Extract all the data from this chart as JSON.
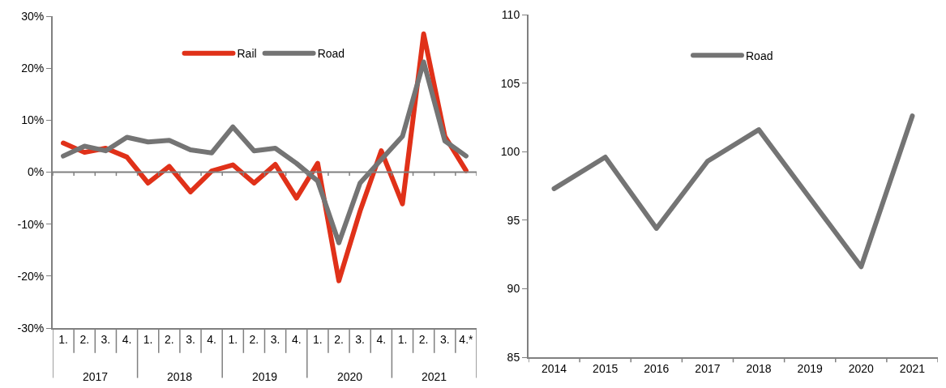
{
  "chart_data": [
    {
      "type": "line",
      "categories": [
        "1.",
        "2.",
        "3.",
        "4.",
        "1.",
        "2.",
        "3.",
        "4.",
        "1.",
        "2.",
        "3.",
        "4.",
        "1.",
        "2.",
        "3.",
        "4.",
        "1.",
        "2.",
        "3.",
        "4.*"
      ],
      "series": [
        {
          "name": "Rail",
          "color": "#e03119",
          "values": [
            5.6,
            3.8,
            4.6,
            2.9,
            -2.1,
            1.1,
            -3.8,
            0.2,
            1.4,
            -2.1,
            1.5,
            -5.0,
            1.7,
            -20.9,
            -7.5,
            4.1,
            -6.1,
            26.6,
            6.9,
            0.3
          ]
        },
        {
          "name": "Road",
          "color": "#747474",
          "values": [
            3.1,
            5.0,
            4.1,
            6.7,
            5.8,
            6.1,
            4.3,
            3.7,
            8.7,
            4.1,
            4.6,
            1.7,
            -1.7,
            -13.6,
            -2.1,
            2.4,
            6.9,
            21.2,
            6.0,
            3.1
          ]
        }
      ],
      "ylim": [
        -30,
        30
      ],
      "yticks": [
        {
          "value": -30,
          "label": "-30%"
        },
        {
          "value": -20,
          "label": "-20%"
        },
        {
          "value": -10,
          "label": "-10%"
        },
        {
          "value": 0,
          "label": "0%"
        },
        {
          "value": 10,
          "label": "10%"
        },
        {
          "value": 20,
          "label": "20%"
        },
        {
          "value": 30,
          "label": "30%"
        }
      ],
      "annotations": [
        "2017",
        "2018",
        "2019",
        "2020",
        "2021"
      ],
      "ref_lines": [
        {
          "axis": "y",
          "value": 0,
          "color": "#808080"
        }
      ],
      "grid": false,
      "legend": "top",
      "marker": "none",
      "line_style": "solid"
    },
    {
      "type": "line",
      "categories": [
        "2014",
        "2015",
        "2016",
        "2017",
        "2018",
        "2019",
        "2020",
        "2021"
      ],
      "series": [
        {
          "name": "Road",
          "color": "#747474",
          "values": [
            97.3,
            99.6,
            94.4,
            99.3,
            101.6,
            96.6,
            91.6,
            102.6
          ]
        }
      ],
      "ylim": [
        85,
        110
      ],
      "yticks": [
        85,
        90,
        95,
        100,
        105,
        110
      ],
      "grid": false,
      "legend": "top",
      "marker": "none",
      "line_style": "solid"
    }
  ]
}
